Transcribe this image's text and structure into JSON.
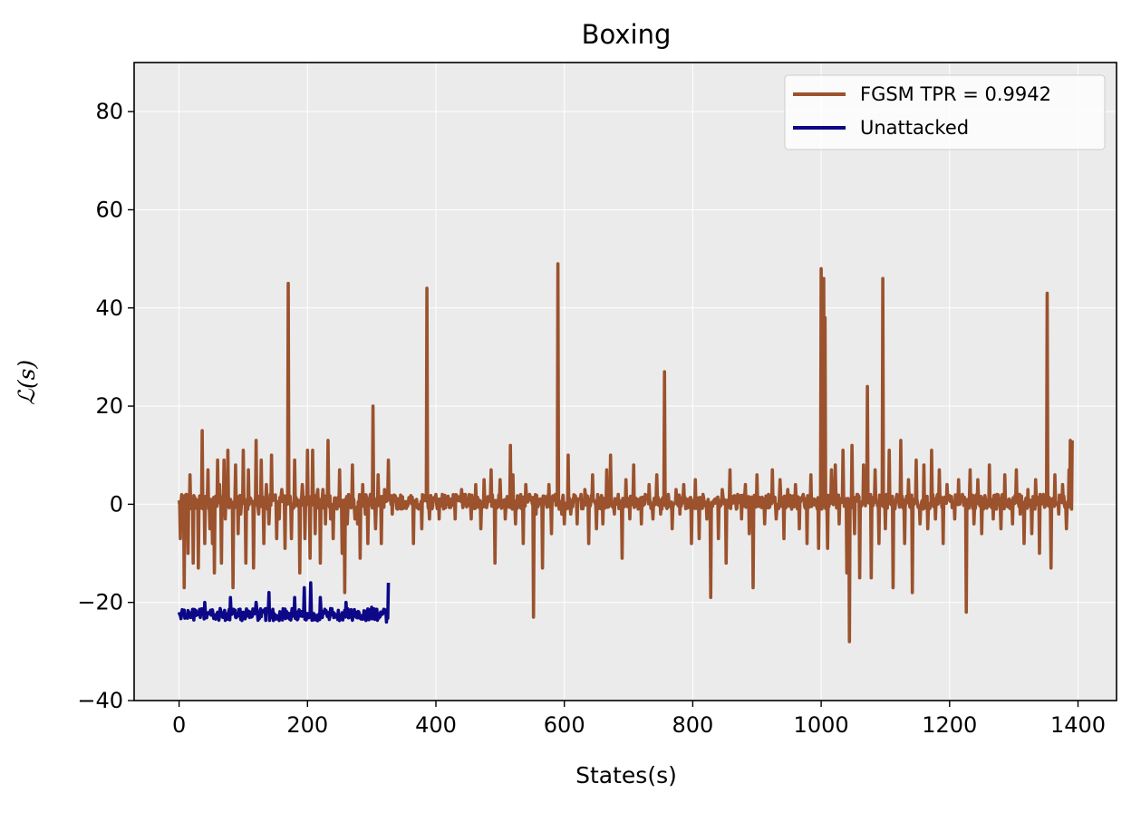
{
  "chart_data": {
    "type": "line",
    "title": "Boxing",
    "xlabel": "States(s)",
    "ylabel": "ℒ(s)",
    "xlim": [
      -70,
      1460
    ],
    "ylim": [
      -40,
      90
    ],
    "xticks": [
      0,
      200,
      400,
      600,
      800,
      1000,
      1200,
      1400
    ],
    "yticks": [
      -40,
      -20,
      0,
      20,
      40,
      60,
      80
    ],
    "grid": true,
    "legend_position": "top-right",
    "series": [
      {
        "name": "FGSM TPR = 0.9942",
        "color": "#9b522d",
        "n_points": 1392,
        "baseline": 0.5,
        "x_range": [
          0,
          1391
        ],
        "peaks": [
          [
            2,
            -7
          ],
          [
            8,
            -17
          ],
          [
            14,
            -10
          ],
          [
            17,
            6
          ],
          [
            22,
            -12
          ],
          [
            26,
            0
          ],
          [
            30,
            -13
          ],
          [
            36,
            15
          ],
          [
            40,
            -8
          ],
          [
            45,
            7
          ],
          [
            48,
            -5
          ],
          [
            52,
            -8
          ],
          [
            55,
            -14
          ],
          [
            60,
            9
          ],
          [
            63,
            4
          ],
          [
            66,
            -12
          ],
          [
            70,
            9
          ],
          [
            72,
            -3
          ],
          [
            76,
            11
          ],
          [
            80,
            1
          ],
          [
            84,
            -17
          ],
          [
            88,
            8
          ],
          [
            92,
            -6
          ],
          [
            96,
            -2
          ],
          [
            100,
            11
          ],
          [
            104,
            -12
          ],
          [
            108,
            7
          ],
          [
            112,
            1
          ],
          [
            116,
            -13
          ],
          [
            120,
            13
          ],
          [
            124,
            -2
          ],
          [
            128,
            9
          ],
          [
            132,
            -8
          ],
          [
            136,
            4
          ],
          [
            140,
            -4
          ],
          [
            144,
            10
          ],
          [
            148,
            1
          ],
          [
            152,
            -7
          ],
          [
            156,
            -3
          ],
          [
            160,
            3
          ],
          [
            165,
            -9
          ],
          [
            170,
            45
          ],
          [
            175,
            -7
          ],
          [
            180,
            9
          ],
          [
            184,
            1
          ],
          [
            188,
            -14
          ],
          [
            192,
            4
          ],
          [
            196,
            -7
          ],
          [
            200,
            11
          ],
          [
            204,
            -11
          ],
          [
            208,
            11
          ],
          [
            212,
            -6
          ],
          [
            216,
            3
          ],
          [
            220,
            -12
          ],
          [
            224,
            3
          ],
          [
            228,
            -4
          ],
          [
            232,
            13
          ],
          [
            236,
            -3
          ],
          [
            240,
            -7
          ],
          [
            245,
            1
          ],
          [
            250,
            7
          ],
          [
            254,
            -10
          ],
          [
            258,
            -18
          ],
          [
            262,
            -4
          ],
          [
            266,
            1
          ],
          [
            270,
            8
          ],
          [
            274,
            -3
          ],
          [
            278,
            -4
          ],
          [
            282,
            -11
          ],
          [
            286,
            4
          ],
          [
            290,
            -2
          ],
          [
            294,
            -8
          ],
          [
            298,
            2
          ],
          [
            302,
            20
          ],
          [
            306,
            -5
          ],
          [
            310,
            6
          ],
          [
            315,
            -8
          ],
          [
            320,
            3
          ],
          [
            326,
            9
          ],
          [
            332,
            -2
          ],
          [
            340,
            -1
          ],
          [
            350,
            0
          ],
          [
            360,
            1
          ],
          [
            365,
            -8
          ],
          [
            370,
            1
          ],
          [
            378,
            -5
          ],
          [
            386,
            44
          ],
          [
            390,
            -3
          ],
          [
            400,
            2
          ],
          [
            405,
            -3
          ],
          [
            410,
            2
          ],
          [
            420,
            1
          ],
          [
            430,
            -3
          ],
          [
            440,
            3
          ],
          [
            450,
            0
          ],
          [
            455,
            -3
          ],
          [
            462,
            4
          ],
          [
            470,
            -5
          ],
          [
            475,
            5
          ],
          [
            480,
            0
          ],
          [
            486,
            7
          ],
          [
            492,
            -12
          ],
          [
            500,
            5
          ],
          [
            508,
            -3
          ],
          [
            516,
            12
          ],
          [
            520,
            6
          ],
          [
            524,
            -4
          ],
          [
            530,
            0
          ],
          [
            536,
            -8
          ],
          [
            540,
            4
          ],
          [
            546,
            2
          ],
          [
            552,
            -23
          ],
          [
            556,
            -2
          ],
          [
            560,
            1
          ],
          [
            566,
            -13
          ],
          [
            572,
            0
          ],
          [
            576,
            4
          ],
          [
            580,
            -6
          ],
          [
            586,
            2
          ],
          [
            590,
            49
          ],
          [
            596,
            -2
          ],
          [
            600,
            -4
          ],
          [
            606,
            10
          ],
          [
            610,
            -2
          ],
          [
            616,
            1
          ],
          [
            620,
            -4
          ],
          [
            626,
            2
          ],
          [
            632,
            3
          ],
          [
            638,
            -8
          ],
          [
            644,
            6
          ],
          [
            650,
            -5
          ],
          [
            656,
            1
          ],
          [
            660,
            -4
          ],
          [
            666,
            7
          ],
          [
            672,
            10
          ],
          [
            678,
            -2
          ],
          [
            684,
            2
          ],
          [
            690,
            -11
          ],
          [
            696,
            5
          ],
          [
            702,
            -3
          ],
          [
            708,
            8
          ],
          [
            714,
            1
          ],
          [
            720,
            -4
          ],
          [
            726,
            2
          ],
          [
            732,
            4
          ],
          [
            738,
            -3
          ],
          [
            744,
            6
          ],
          [
            750,
            -2
          ],
          [
            756,
            27
          ],
          [
            762,
            2
          ],
          [
            768,
            -5
          ],
          [
            774,
            3
          ],
          [
            780,
            -2
          ],
          [
            786,
            4
          ],
          [
            792,
            1
          ],
          [
            798,
            -8
          ],
          [
            804,
            5
          ],
          [
            810,
            -7
          ],
          [
            816,
            2
          ],
          [
            822,
            -3
          ],
          [
            828,
            -19
          ],
          [
            834,
            1
          ],
          [
            840,
            -7
          ],
          [
            846,
            3
          ],
          [
            852,
            -12
          ],
          [
            858,
            7
          ],
          [
            864,
            1
          ],
          [
            870,
            2
          ],
          [
            876,
            -3
          ],
          [
            882,
            4
          ],
          [
            888,
            -6
          ],
          [
            894,
            -17
          ],
          [
            900,
            6
          ],
          [
            906,
            1
          ],
          [
            912,
            -4
          ],
          [
            918,
            2
          ],
          [
            924,
            7
          ],
          [
            930,
            -3
          ],
          [
            936,
            5
          ],
          [
            942,
            -7
          ],
          [
            948,
            3
          ],
          [
            954,
            -1
          ],
          [
            960,
            4
          ],
          [
            966,
            -5
          ],
          [
            972,
            2
          ],
          [
            978,
            -8
          ],
          [
            984,
            6
          ],
          [
            990,
            1
          ],
          [
            996,
            -9
          ],
          [
            1000,
            48
          ],
          [
            1002,
            40
          ],
          [
            1004,
            46
          ],
          [
            1006,
            38
          ],
          [
            1010,
            -9
          ],
          [
            1016,
            7
          ],
          [
            1022,
            8
          ],
          [
            1028,
            -4
          ],
          [
            1034,
            11
          ],
          [
            1040,
            -14
          ],
          [
            1044,
            -28
          ],
          [
            1048,
            12
          ],
          [
            1052,
            -6
          ],
          [
            1056,
            2
          ],
          [
            1060,
            -15
          ],
          [
            1066,
            8
          ],
          [
            1072,
            24
          ],
          [
            1078,
            -15
          ],
          [
            1084,
            7
          ],
          [
            1090,
            -8
          ],
          [
            1096,
            46
          ],
          [
            1100,
            -5
          ],
          [
            1106,
            11
          ],
          [
            1112,
            -17
          ],
          [
            1118,
            2
          ],
          [
            1124,
            13
          ],
          [
            1130,
            -8
          ],
          [
            1136,
            5
          ],
          [
            1142,
            -18
          ],
          [
            1148,
            9
          ],
          [
            1154,
            -4
          ],
          [
            1160,
            8
          ],
          [
            1166,
            -5
          ],
          [
            1172,
            11
          ],
          [
            1178,
            -3
          ],
          [
            1184,
            7
          ],
          [
            1190,
            -8
          ],
          [
            1196,
            4
          ],
          [
            1202,
            1
          ],
          [
            1208,
            -3
          ],
          [
            1214,
            5
          ],
          [
            1220,
            2
          ],
          [
            1226,
            -22
          ],
          [
            1232,
            7
          ],
          [
            1238,
            -4
          ],
          [
            1244,
            5
          ],
          [
            1250,
            -6
          ],
          [
            1256,
            1
          ],
          [
            1262,
            8
          ],
          [
            1268,
            -3
          ],
          [
            1274,
            2
          ],
          [
            1280,
            -5
          ],
          [
            1286,
            6
          ],
          [
            1292,
            1
          ],
          [
            1298,
            -4
          ],
          [
            1304,
            7
          ],
          [
            1310,
            -2
          ],
          [
            1316,
            -8
          ],
          [
            1322,
            3
          ],
          [
            1328,
            -6
          ],
          [
            1334,
            5
          ],
          [
            1340,
            -10
          ],
          [
            1346,
            2
          ],
          [
            1352,
            43
          ],
          [
            1358,
            -13
          ],
          [
            1364,
            6
          ],
          [
            1370,
            -2
          ],
          [
            1376,
            4
          ],
          [
            1382,
            -5
          ],
          [
            1386,
            7
          ],
          [
            1388,
            13
          ],
          [
            1391,
            13
          ]
        ]
      },
      {
        "name": "Unattacked",
        "color": "#0d0887",
        "n_points": 327,
        "baseline": -22.5,
        "x_range": [
          0,
          326
        ],
        "peaks": [
          [
            0,
            -22
          ],
          [
            20,
            -23
          ],
          [
            40,
            -20
          ],
          [
            60,
            -22
          ],
          [
            80,
            -19
          ],
          [
            100,
            -22
          ],
          [
            120,
            -20
          ],
          [
            140,
            -18
          ],
          [
            160,
            -22
          ],
          [
            180,
            -19
          ],
          [
            195,
            -17
          ],
          [
            205,
            -16
          ],
          [
            220,
            -19
          ],
          [
            240,
            -22
          ],
          [
            260,
            -20
          ],
          [
            280,
            -22
          ],
          [
            300,
            -21
          ],
          [
            320,
            -22
          ],
          [
            323,
            -24
          ],
          [
            326,
            -16
          ]
        ]
      }
    ]
  }
}
